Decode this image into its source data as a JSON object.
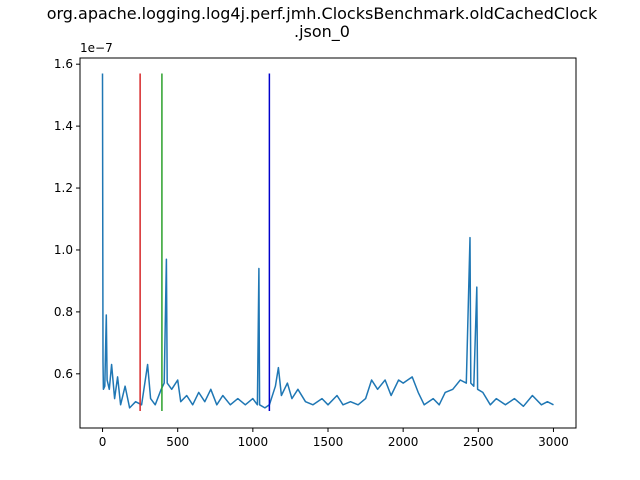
{
  "chart_data": {
    "type": "line",
    "title_line1": "org.apache.logging.log4j.perf.jmh.ClocksBenchmark.oldCachedClock",
    "title_line2": ".json_0",
    "xlabel": "",
    "ylabel": "",
    "y_offset_label": "1e−7",
    "xlim": [
      -150,
      3150
    ],
    "ylim": [
      4.25e-08,
      1.62e-07
    ],
    "x_ticks": [
      0,
      500,
      1000,
      1500,
      2000,
      2500,
      3000
    ],
    "x_tick_labels": [
      "0",
      "500",
      "1000",
      "1500",
      "2000",
      "2500",
      "3000"
    ],
    "y_ticks": [
      6e-08,
      8e-08,
      1e-07,
      1.2e-07,
      1.4e-07,
      1.6e-07
    ],
    "y_tick_labels": [
      "0.6",
      "0.8",
      "1.0",
      "1.2",
      "1.4",
      "1.6"
    ],
    "grid": false,
    "series": [
      {
        "color": "#1f77b4",
        "points": [
          [
            0,
            1.57e-07
          ],
          [
            3,
            6.4e-08
          ],
          [
            6,
            5.5e-08
          ],
          [
            15,
            5.6e-08
          ],
          [
            25,
            7.9e-08
          ],
          [
            30,
            5.8e-08
          ],
          [
            45,
            5.5e-08
          ],
          [
            60,
            6.3e-08
          ],
          [
            80,
            5.2e-08
          ],
          [
            100,
            5.9e-08
          ],
          [
            120,
            5e-08
          ],
          [
            150,
            5.6e-08
          ],
          [
            180,
            4.9e-08
          ],
          [
            220,
            5.1e-08
          ],
          [
            260,
            5e-08
          ],
          [
            300,
            6.3e-08
          ],
          [
            320,
            5.2e-08
          ],
          [
            350,
            5e-08
          ],
          [
            390,
            5.5e-08
          ],
          [
            410,
            5.7e-08
          ],
          [
            425,
            9.7e-08
          ],
          [
            430,
            5.7e-08
          ],
          [
            460,
            5.5e-08
          ],
          [
            500,
            5.8e-08
          ],
          [
            520,
            5.1e-08
          ],
          [
            560,
            5.3e-08
          ],
          [
            600,
            5e-08
          ],
          [
            640,
            5.4e-08
          ],
          [
            680,
            5.1e-08
          ],
          [
            720,
            5.5e-08
          ],
          [
            760,
            5e-08
          ],
          [
            800,
            5.3e-08
          ],
          [
            850,
            5e-08
          ],
          [
            900,
            5.2e-08
          ],
          [
            950,
            5e-08
          ],
          [
            1000,
            5.2e-08
          ],
          [
            1030,
            5e-08
          ],
          [
            1040,
            9.4e-08
          ],
          [
            1045,
            5e-08
          ],
          [
            1080,
            4.9e-08
          ],
          [
            1110,
            5e-08
          ],
          [
            1150,
            5.6e-08
          ],
          [
            1170,
            6.2e-08
          ],
          [
            1190,
            5.3e-08
          ],
          [
            1230,
            5.7e-08
          ],
          [
            1260,
            5.2e-08
          ],
          [
            1300,
            5.5e-08
          ],
          [
            1350,
            5.1e-08
          ],
          [
            1400,
            5e-08
          ],
          [
            1460,
            5.2e-08
          ],
          [
            1500,
            5e-08
          ],
          [
            1560,
            5.3e-08
          ],
          [
            1600,
            5e-08
          ],
          [
            1650,
            5.1e-08
          ],
          [
            1700,
            5e-08
          ],
          [
            1750,
            5.2e-08
          ],
          [
            1790,
            5.8e-08
          ],
          [
            1830,
            5.5e-08
          ],
          [
            1880,
            5.8e-08
          ],
          [
            1920,
            5.3e-08
          ],
          [
            1970,
            5.8e-08
          ],
          [
            2000,
            5.7e-08
          ],
          [
            2060,
            5.9e-08
          ],
          [
            2100,
            5.4e-08
          ],
          [
            2140,
            5e-08
          ],
          [
            2200,
            5.2e-08
          ],
          [
            2240,
            5e-08
          ],
          [
            2280,
            5.4e-08
          ],
          [
            2330,
            5.5e-08
          ],
          [
            2380,
            5.8e-08
          ],
          [
            2420,
            5.7e-08
          ],
          [
            2445,
            1.04e-07
          ],
          [
            2450,
            5.7e-08
          ],
          [
            2470,
            5.6e-08
          ],
          [
            2490,
            8.8e-08
          ],
          [
            2495,
            5.5e-08
          ],
          [
            2530,
            5.4e-08
          ],
          [
            2580,
            5e-08
          ],
          [
            2620,
            5.2e-08
          ],
          [
            2680,
            5e-08
          ],
          [
            2740,
            5.2e-08
          ],
          [
            2800,
            4.95e-08
          ],
          [
            2860,
            5.3e-08
          ],
          [
            2920,
            5e-08
          ],
          [
            2960,
            5.1e-08
          ],
          [
            3000,
            5e-08
          ]
        ]
      }
    ],
    "vertical_lines": [
      {
        "x": 250,
        "color": "#d62728",
        "ymin": 4.8e-08,
        "ymax": 1.57e-07
      },
      {
        "x": 395,
        "color": "#2ca02c",
        "ymin": 4.8e-08,
        "ymax": 1.57e-07
      },
      {
        "x": 1110,
        "color": "#0000cc",
        "ymin": 4.8e-08,
        "ymax": 1.57e-07
      }
    ]
  }
}
